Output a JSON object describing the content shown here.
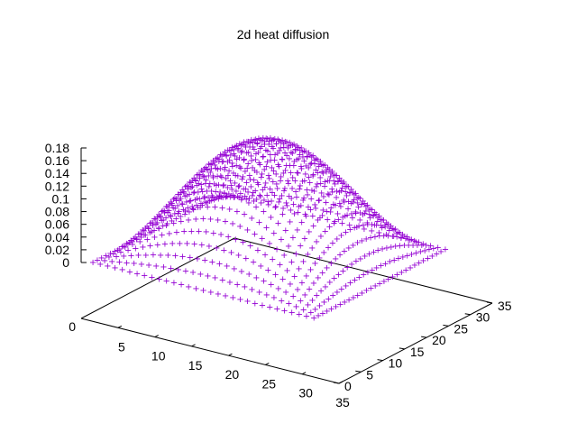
{
  "chart_data": {
    "type": "scatter",
    "title": "2d heat diffusion",
    "xlabel": "",
    "ylabel": "",
    "zlabel": "",
    "marker": "+",
    "color": "#9400d3",
    "axis_color": "#000000",
    "grid": false,
    "legend": "none",
    "xlim": [
      0,
      35
    ],
    "ylim": [
      0,
      35
    ],
    "zlim": [
      0,
      0.18
    ],
    "grid_n": 31,
    "x_ticks": [
      "5",
      "10",
      "15",
      "20",
      "25",
      "30",
      "35"
    ],
    "y_ticks": [
      "0",
      "5",
      "10",
      "15",
      "20",
      "25",
      "30",
      "35"
    ],
    "z_ticks": [
      "0",
      "0.02",
      "0.04",
      "0.06",
      "0.08",
      "0.1",
      "0.12",
      "0.14",
      "0.16",
      "0.18"
    ],
    "x_origin_label": "0",
    "surface": "z = 0.18 * sin(pi*x/30) * sin(pi*y/30)"
  }
}
